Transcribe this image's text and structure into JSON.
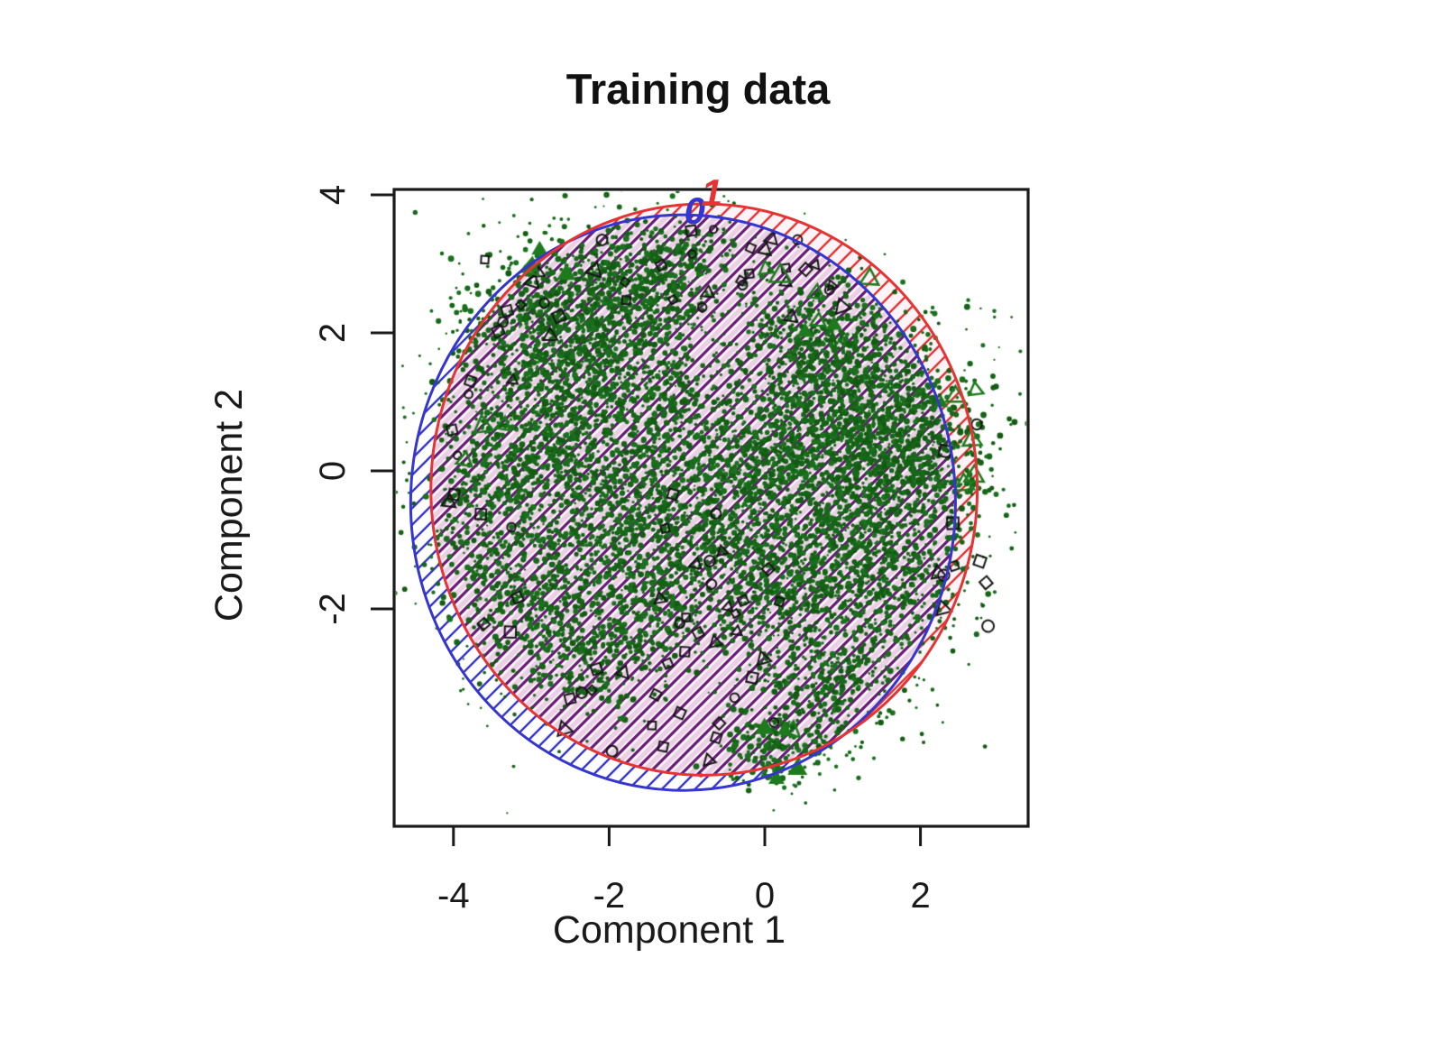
{
  "window": {
    "background": "#ffffff"
  },
  "chart_data": {
    "type": "scatter",
    "title": "Training data",
    "xlabel": "Component 1",
    "ylabel": "Component 2",
    "x_ticks": [
      -4,
      -2,
      0,
      2
    ],
    "x_tick_labels": [
      "-4",
      "-2",
      "0",
      "2"
    ],
    "y_ticks": [
      4,
      2,
      0,
      -2
    ],
    "y_tick_labels": [
      "4",
      "2",
      "0",
      "-2"
    ],
    "xlim": [
      -4.76,
      3.38
    ],
    "ylim": [
      -5.18,
      4.07
    ],
    "grid": false,
    "legend": "none",
    "axis_color": "#1a1a1a",
    "classes": [
      {
        "label": "0",
        "color": "#3535cf",
        "boundary": "ellipse",
        "hatch": "diagonal-45",
        "center": [
          -1.05,
          -0.46
        ],
        "radius": [
          3.5,
          4.17
        ],
        "label_pos": [
          -0.9,
          3.78
        ]
      },
      {
        "label": "1",
        "color": "#e63333",
        "boundary": "ellipse",
        "hatch": "diagonal-45",
        "center": [
          -0.78,
          -0.27
        ],
        "radius": [
          3.51,
          4.14
        ],
        "label_pos": [
          -0.68,
          4.04
        ]
      }
    ],
    "overlap": {
      "line_color": "#6b1f78",
      "band_color": "#dfb3d6",
      "bg_color": "#f9f1f7"
    },
    "points": {
      "dense_color": "#17691a",
      "dense_shades": [
        "#125c12",
        "#156315",
        "#17691a",
        "#1a701d"
      ],
      "seed": 42,
      "clusters": [
        [
          -2.4,
          1.85,
          0.7,
          520
        ],
        [
          -2.75,
          0.55,
          0.65,
          480
        ],
        [
          -1.95,
          -0.5,
          0.6,
          400
        ],
        [
          -3.1,
          -1.7,
          0.55,
          360
        ],
        [
          -1.7,
          2.6,
          0.48,
          280
        ],
        [
          -2.85,
          2.3,
          0.48,
          280
        ],
        [
          -1.35,
          -1.8,
          0.5,
          320
        ],
        [
          -2.3,
          -2.6,
          0.45,
          250
        ],
        [
          -0.9,
          0.0,
          0.55,
          260
        ],
        [
          -0.35,
          -1.05,
          0.5,
          240
        ],
        [
          0.6,
          0.55,
          0.68,
          520
        ],
        [
          1.2,
          -0.5,
          0.65,
          480
        ],
        [
          0.95,
          1.45,
          0.55,
          360
        ],
        [
          0.35,
          -1.55,
          0.55,
          360
        ],
        [
          0.85,
          -3.0,
          0.5,
          300
        ],
        [
          0.15,
          -4.0,
          0.33,
          170
        ],
        [
          1.65,
          0.8,
          0.5,
          290
        ],
        [
          -3.4,
          -0.3,
          0.45,
          210
        ],
        [
          1.6,
          -1.6,
          0.5,
          270
        ],
        [
          -1.6,
          1.2,
          0.55,
          290
        ],
        [
          -1.15,
          2.9,
          0.4,
          190
        ],
        [
          0.7,
          1.9,
          0.42,
          190
        ],
        [
          0.0,
          0.2,
          0.45,
          200
        ],
        [
          1.95,
          0.1,
          0.45,
          230
        ]
      ],
      "open_markers": {
        "color": "#161616",
        "shapes": [
          "circle",
          "square",
          "triangle",
          "diamond"
        ],
        "regions": [
          [
            -2.2,
            1.1,
            2.1,
            3.5,
            26
          ],
          [
            -1.4,
            0.4,
            -2.9,
            -0.3,
            20
          ],
          [
            -2.6,
            0.2,
            -4.2,
            -2.7,
            18
          ],
          [
            -4.1,
            -3.1,
            -2.4,
            1.4,
            12
          ],
          [
            1.9,
            2.9,
            -2.4,
            1.5,
            10
          ],
          [
            -3.6,
            -2.6,
            1.8,
            3.1,
            10
          ]
        ]
      },
      "green_triangles": {
        "color": "#1d7a1d",
        "regions": [
          [
            -0.2,
            1.4,
            2.0,
            3.2,
            6
          ],
          [
            2.1,
            2.9,
            -0.8,
            1.8,
            5
          ],
          [
            -3.4,
            -2.4,
            2.4,
            3.3,
            4
          ],
          [
            -0.1,
            0.8,
            -4.5,
            -3.6,
            4
          ],
          [
            -4.0,
            -3.3,
            -0.5,
            1.0,
            3
          ]
        ],
        "feature_triangles": [
          [
            0.2,
            2.85,
            "open",
            17
          ],
          [
            2.45,
            1.1,
            "open",
            15
          ],
          [
            0.42,
            -4.3,
            "filled",
            16
          ],
          [
            0.15,
            -4.45,
            "filled",
            13
          ]
        ]
      }
    }
  }
}
